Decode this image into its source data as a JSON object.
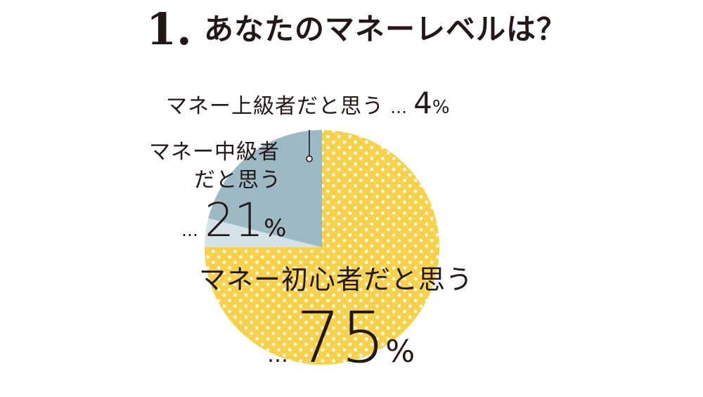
{
  "heading": {
    "number": "1.",
    "title": "あなたのマネーレベルは？"
  },
  "colors": {
    "beginner": "#F7D14A",
    "beginner_dots": "#FFFFFF",
    "intermediate": "#9BBAC6",
    "advanced": "#D5E3E8",
    "text": "#231815"
  },
  "chart_data": {
    "type": "pie",
    "title": "あなたのマネーレベルは？",
    "slices": [
      {
        "label": "マネー上級者だと思う",
        "value": 4
      },
      {
        "label": "マネー中級者だと思う",
        "value": 21
      },
      {
        "label": "マネー初心者だと思う",
        "value": 75
      }
    ],
    "legend": "none",
    "grid": false
  },
  "labels": {
    "advanced": {
      "name": "マネー上級者だと思う",
      "dots": "…",
      "value": "4",
      "unit": "%"
    },
    "intermediate": {
      "line1": "マネー中級者",
      "line2": "だと思う",
      "dots": "…",
      "value": "21",
      "unit": "%"
    },
    "beginner": {
      "name": "マネー初心者だと思う",
      "dots": "…",
      "value": "75",
      "unit": "%"
    }
  }
}
